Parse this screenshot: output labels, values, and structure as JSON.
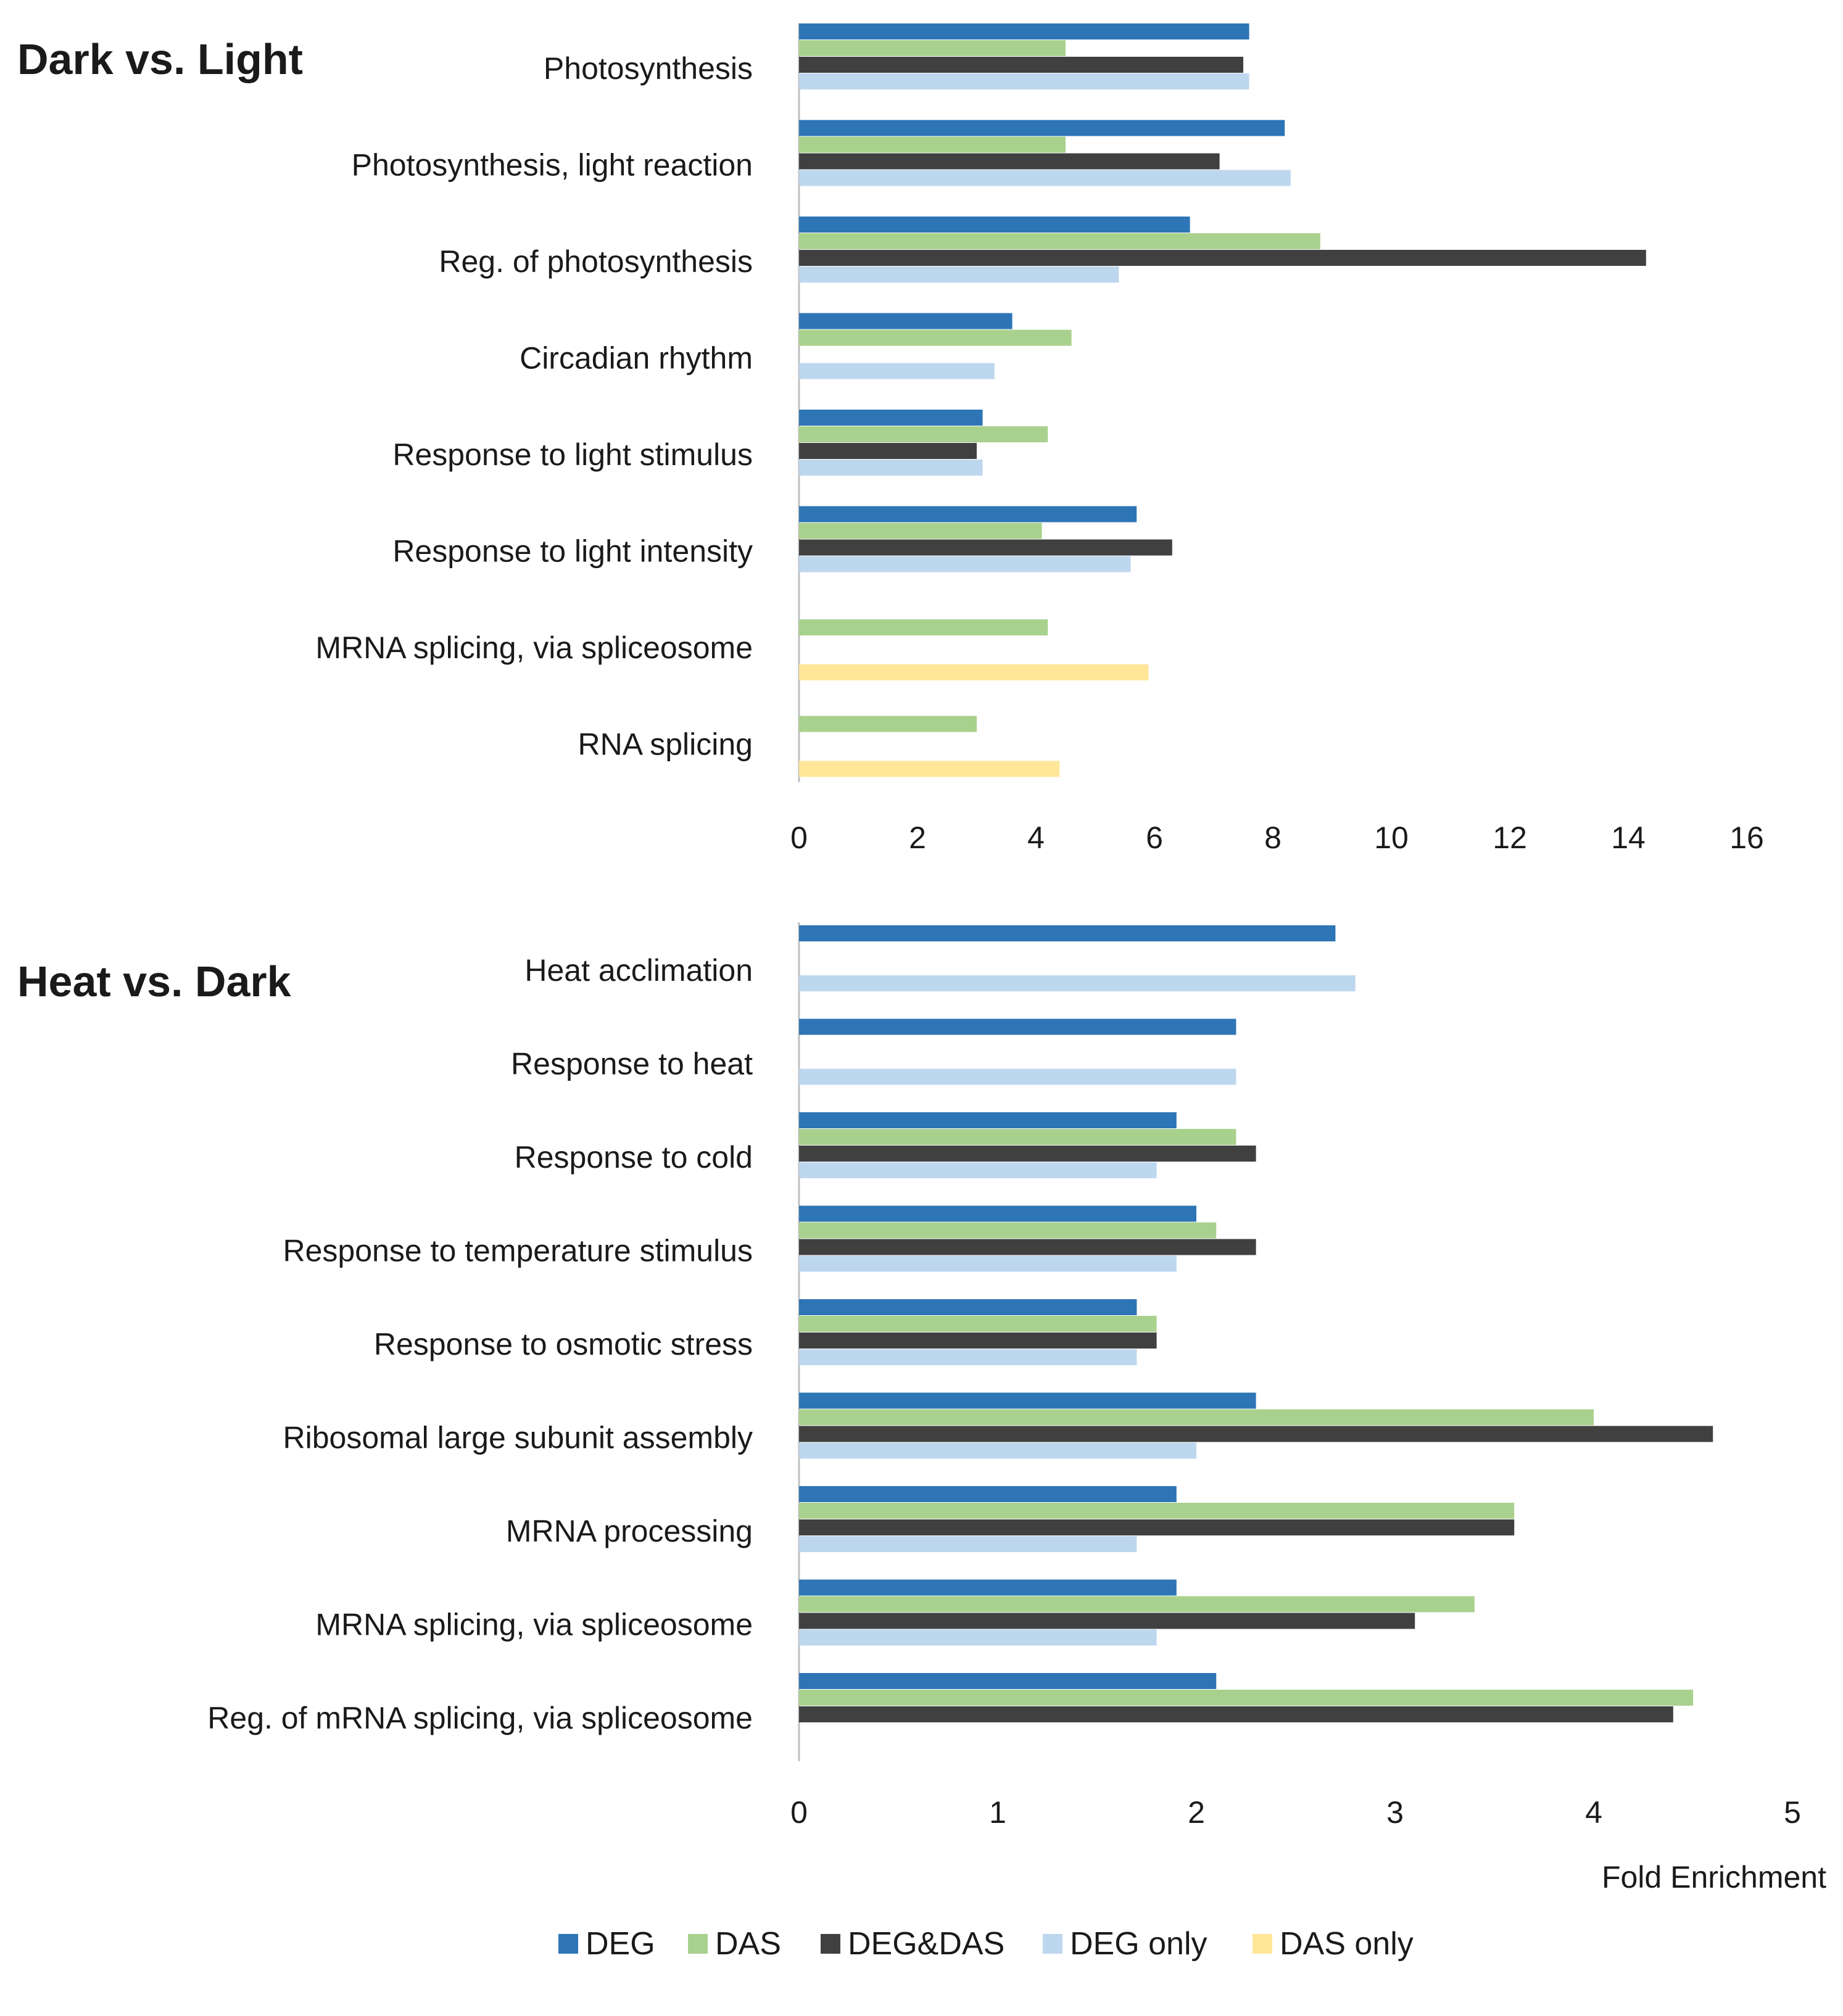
{
  "legend": [
    {
      "key": "DEG",
      "label": "DEG",
      "color": "#2e75b6"
    },
    {
      "key": "DAS",
      "label": "DAS",
      "color": "#a9d18e"
    },
    {
      "key": "DEGDAS",
      "label": "DEG&DAS",
      "color": "#404040"
    },
    {
      "key": "DEGonly",
      "label": "DEG only",
      "color": "#bdd7ee"
    },
    {
      "key": "DASonly",
      "label": "DAS only",
      "color": "#ffe699"
    }
  ],
  "legend_placement": "bottom",
  "chart_data": [
    {
      "type": "bar",
      "orientation": "horizontal",
      "title": "Dark vs. Light",
      "xlim": [
        0,
        16
      ],
      "xticks": [
        0,
        2,
        4,
        6,
        8,
        10,
        12,
        14,
        16
      ],
      "xlabel": "",
      "grid": false,
      "categories": [
        "Photosynthesis",
        "Photosynthesis, light reaction",
        "Reg. of photosynthesis",
        "Circadian rhythm",
        "Response to light stimulus",
        "Response to light intensity",
        "MRNA splicing, via spliceosome",
        "RNA splicing"
      ],
      "series": [
        {
          "name": "DEG",
          "values": [
            7.6,
            8.2,
            6.6,
            3.6,
            3.1,
            5.7,
            null,
            null
          ]
        },
        {
          "name": "DAS",
          "values": [
            4.5,
            4.5,
            8.8,
            4.6,
            4.2,
            4.1,
            4.2,
            3.0
          ]
        },
        {
          "name": "DEG&DAS",
          "values": [
            7.5,
            7.1,
            14.3,
            null,
            3.0,
            6.3,
            null,
            null
          ]
        },
        {
          "name": "DEG only",
          "values": [
            7.6,
            8.3,
            5.4,
            3.3,
            3.1,
            5.6,
            null,
            null
          ]
        },
        {
          "name": "DAS only",
          "values": [
            null,
            null,
            null,
            null,
            null,
            null,
            5.9,
            4.4
          ]
        }
      ]
    },
    {
      "type": "bar",
      "orientation": "horizontal",
      "title": "Heat vs. Dark",
      "xlim": [
        0,
        5
      ],
      "xticks": [
        0,
        1,
        2,
        3,
        4,
        5
      ],
      "xlabel": "Fold Enrichment",
      "grid": false,
      "categories": [
        "Heat acclimation",
        "Response to heat",
        "Response to cold",
        "Response to temperature stimulus",
        "Response to osmotic stress",
        "Ribosomal large subunit assembly",
        "MRNA processing",
        "MRNA splicing, via spliceosome",
        "Reg. of mRNA splicing, via spliceosome"
      ],
      "series": [
        {
          "name": "DEG",
          "values": [
            2.7,
            2.2,
            1.9,
            2.0,
            1.7,
            2.3,
            1.9,
            1.9,
            2.1
          ]
        },
        {
          "name": "DAS",
          "values": [
            null,
            null,
            2.2,
            2.1,
            1.8,
            4.0,
            3.6,
            3.4,
            4.5
          ]
        },
        {
          "name": "DEG&DAS",
          "values": [
            null,
            null,
            2.3,
            2.3,
            1.8,
            4.6,
            3.6,
            3.1,
            4.4
          ]
        },
        {
          "name": "DEG only",
          "values": [
            2.8,
            2.2,
            1.8,
            1.9,
            1.7,
            2.0,
            1.7,
            1.8,
            null
          ]
        }
      ]
    }
  ]
}
